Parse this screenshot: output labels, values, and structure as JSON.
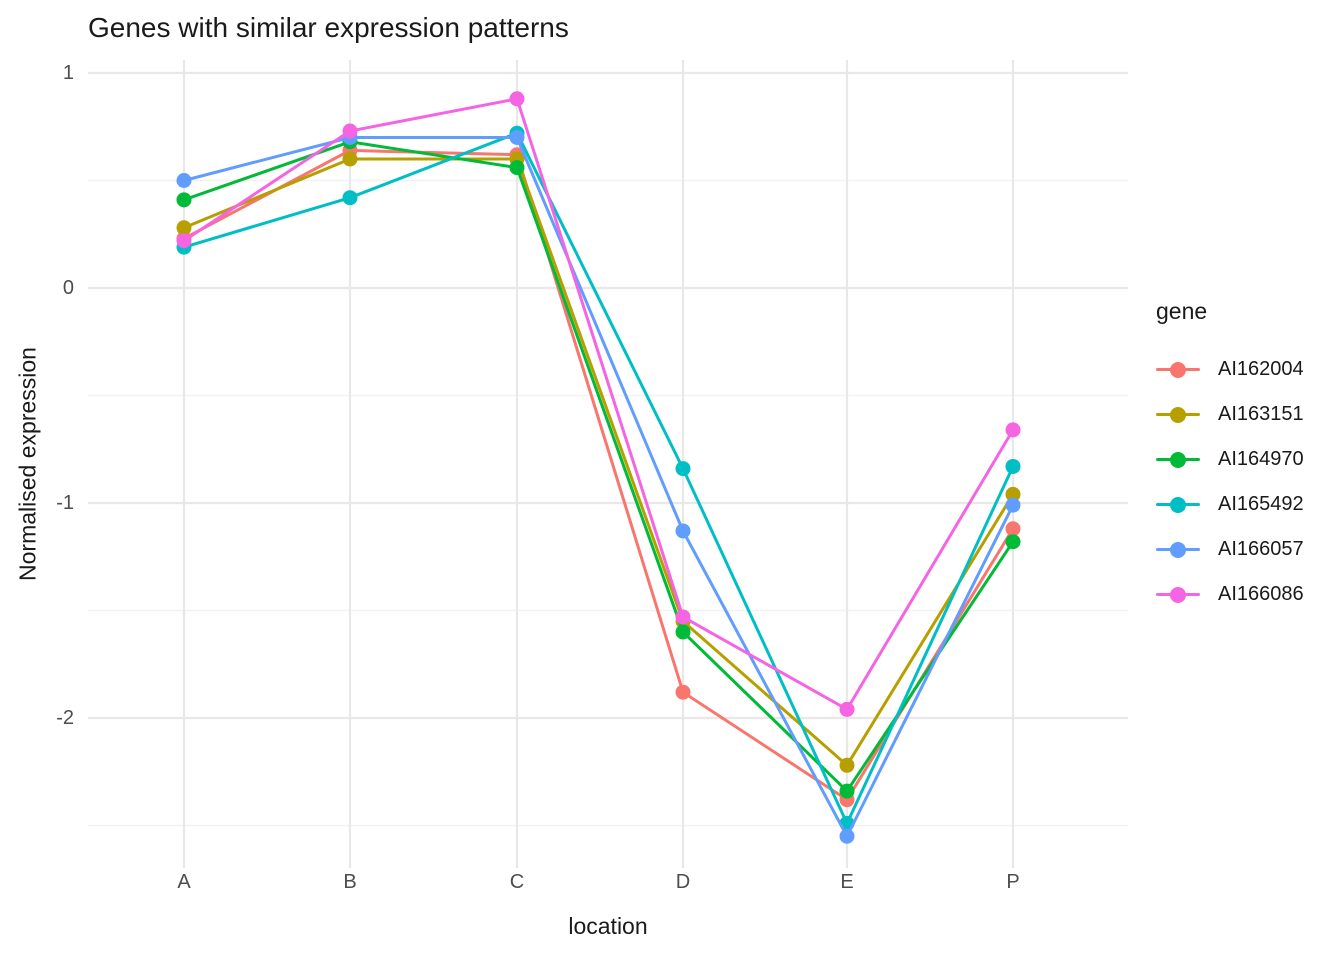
{
  "title": "Genes with similar expression patterns",
  "axes": {
    "x_title": "location",
    "y_title": "Normalised expression"
  },
  "legend": {
    "title": "gene"
  },
  "chart_data": {
    "type": "line",
    "title": "Genes with similar expression patterns",
    "xlabel": "location",
    "ylabel": "Normalised expression",
    "categories": [
      "A",
      "B",
      "C",
      "D",
      "E",
      "P"
    ],
    "series": [
      {
        "name": "AI162004",
        "color": "#F8766D",
        "values": [
          0.23,
          0.64,
          0.62,
          -1.88,
          -2.38,
          -1.12
        ]
      },
      {
        "name": "AI163151",
        "color": "#B79F00",
        "values": [
          0.28,
          0.6,
          0.6,
          -1.55,
          -2.22,
          -0.96
        ]
      },
      {
        "name": "AI164970",
        "color": "#00BA38",
        "values": [
          0.41,
          0.68,
          0.56,
          -1.6,
          -2.34,
          -1.18
        ]
      },
      {
        "name": "AI165492",
        "color": "#00BFC4",
        "values": [
          0.19,
          0.42,
          0.72,
          -0.84,
          -2.49,
          -0.83
        ]
      },
      {
        "name": "AI166057",
        "color": "#619CFF",
        "values": [
          0.5,
          0.7,
          0.7,
          -1.13,
          -2.55,
          -1.01
        ]
      },
      {
        "name": "AI166086",
        "color": "#F564E3",
        "values": [
          0.22,
          0.73,
          0.88,
          -1.53,
          -1.96,
          -0.66
        ]
      }
    ],
    "ylim": [
      -2.7,
      1.06
    ],
    "y_major_ticks": [
      1,
      0,
      -1,
      -2
    ],
    "y_minor_ticks": [
      0.5,
      -0.5,
      -1.5,
      -2.5
    ],
    "grid": true,
    "legend_position": "right",
    "legend_title": "gene",
    "colors": {
      "major_gridline": "#E8E8E8",
      "minor_gridline": "#F2F2F2",
      "tick_label": "#4d4d4d",
      "text": "#1a1a1a",
      "background": "#ffffff"
    }
  }
}
